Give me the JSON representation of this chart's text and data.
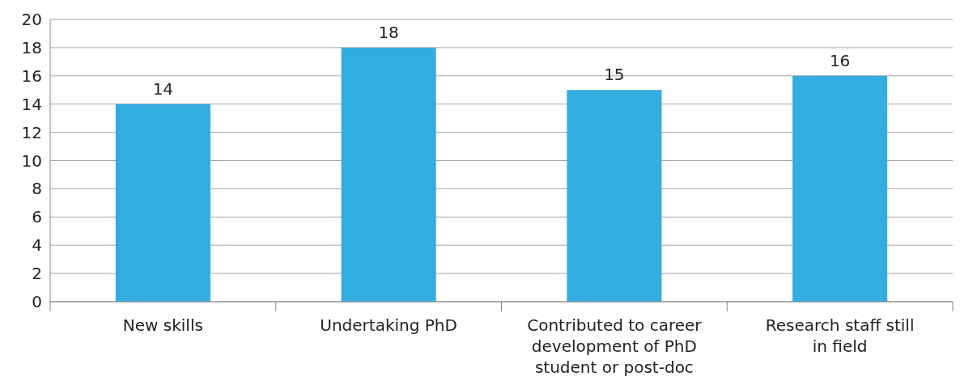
{
  "chart_data": {
    "type": "bar",
    "categories": [
      "New skills",
      "Undertaking PhD",
      "Contributed to career development of PhD student or post-doc",
      "Research staff still in field"
    ],
    "values": [
      14,
      18,
      15,
      16
    ],
    "color": "#33ace0",
    "ylim": [
      0,
      20
    ],
    "yticks": [
      0,
      2,
      4,
      6,
      8,
      10,
      12,
      14,
      16,
      18,
      20
    ],
    "grid": "y",
    "data_labels": true
  }
}
